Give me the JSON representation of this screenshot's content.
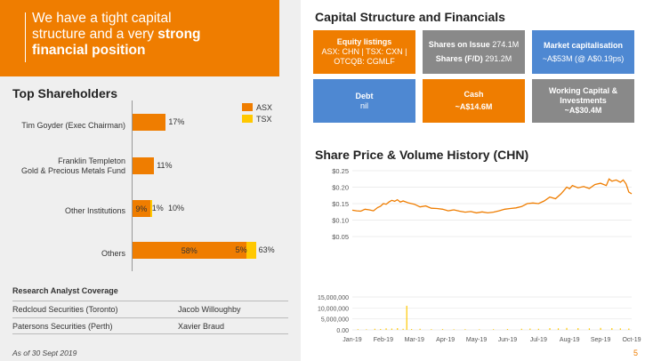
{
  "headline": {
    "line1": "We have a tight capital",
    "line2_pre": "structure and a very ",
    "line2_bold": "strong",
    "line3_bold": "financial position"
  },
  "top_shareholders": {
    "title": "Top Shareholders",
    "legend": [
      {
        "label": "ASX",
        "color": "#ef7d00"
      },
      {
        "label": "TSX",
        "color": "#ffc800"
      }
    ],
    "rows": [
      {
        "name": "Tim Goyder (Exec Chairman)",
        "asx": 17,
        "tsx": 0,
        "asx_label": "",
        "tsx_label": "",
        "total_label": "17%"
      },
      {
        "name_line1": "Franklin Templeton",
        "name_line2": "Gold & Precious Metals Fund",
        "asx": 11,
        "tsx": 0,
        "asx_label": "",
        "tsx_label": "",
        "total_label": "11%"
      },
      {
        "name": "Other Institutions",
        "asx": 9,
        "tsx": 1,
        "asx_label": "9%",
        "tsx_label": "1%",
        "total_label": "10%"
      },
      {
        "name": "Others",
        "asx": 58,
        "tsx": 5,
        "asx_label": "58%",
        "tsx_label": "5%",
        "total_label": "63%"
      }
    ]
  },
  "research": {
    "title": "Research Analyst Coverage",
    "rows": [
      {
        "firm": "Redcloud Securities (Toronto)",
        "analyst": "Jacob Willoughby"
      },
      {
        "firm": "Patersons Securities (Perth)",
        "analyst": "Xavier Braud"
      }
    ]
  },
  "footnote": "As of 30 Sept 2019",
  "capital": {
    "title": "Capital Structure and Financials",
    "equity": {
      "label": "Equity listings",
      "line1": "ASX: CHN | TSX: CXN |",
      "line2": "OTCQB: CGMLF"
    },
    "shares": {
      "issue_label": "Shares on Issue",
      "issue_value": "274.1M",
      "fd_label": "Shares (F/D)",
      "fd_value": "291.2M"
    },
    "market_cap": {
      "label": "Market capitalisation",
      "value": "~A$53M (@ A$0.19ps)"
    },
    "debt": {
      "label": "Debt",
      "value": "nil"
    },
    "cash": {
      "label": "Cash",
      "value": "~A$14.6M"
    },
    "working_capital": {
      "label": "Working Capital &",
      "label2": "Investments",
      "value": "~A$30.4M"
    }
  },
  "chart_data": {
    "type": "line",
    "title": "Share Price & Volume History (CHN)",
    "price_ylim": [
      0.05,
      0.25
    ],
    "price_ticks": [
      "$0.05",
      "$0.10",
      "$0.15",
      "$0.20",
      "$0.25"
    ],
    "volume_ylim": [
      0,
      15000000
    ],
    "volume_ticks": [
      "0.00",
      "5,000,000",
      "10,000,000",
      "15,000,000"
    ],
    "x_ticks": [
      "Jan-19",
      "Feb-19",
      "Mar-19",
      "Apr-19",
      "May-19",
      "Jun-19",
      "Jul-19",
      "Aug-19",
      "Sep-19",
      "Oct-19"
    ],
    "price_series": [
      [
        0,
        0.13
      ],
      [
        0.15,
        0.128
      ],
      [
        0.3,
        0.127
      ],
      [
        0.45,
        0.133
      ],
      [
        0.6,
        0.131
      ],
      [
        0.75,
        0.128
      ],
      [
        0.9,
        0.138
      ],
      [
        1.0,
        0.142
      ],
      [
        1.1,
        0.15
      ],
      [
        1.2,
        0.148
      ],
      [
        1.3,
        0.155
      ],
      [
        1.4,
        0.16
      ],
      [
        1.5,
        0.157
      ],
      [
        1.6,
        0.162
      ],
      [
        1.7,
        0.155
      ],
      [
        1.8,
        0.158
      ],
      [
        2.0,
        0.152
      ],
      [
        2.2,
        0.148
      ],
      [
        2.4,
        0.14
      ],
      [
        2.6,
        0.143
      ],
      [
        2.8,
        0.136
      ],
      [
        3.0,
        0.135
      ],
      [
        3.2,
        0.133
      ],
      [
        3.4,
        0.128
      ],
      [
        3.6,
        0.131
      ],
      [
        3.8,
        0.127
      ],
      [
        4.0,
        0.124
      ],
      [
        4.2,
        0.126
      ],
      [
        4.4,
        0.122
      ],
      [
        4.6,
        0.125
      ],
      [
        4.8,
        0.122
      ],
      [
        5.0,
        0.124
      ],
      [
        5.2,
        0.128
      ],
      [
        5.4,
        0.133
      ],
      [
        5.6,
        0.135
      ],
      [
        5.8,
        0.137
      ],
      [
        6.0,
        0.141
      ],
      [
        6.2,
        0.15
      ],
      [
        6.4,
        0.152
      ],
      [
        6.6,
        0.15
      ],
      [
        6.8,
        0.158
      ],
      [
        7.0,
        0.17
      ],
      [
        7.2,
        0.165
      ],
      [
        7.4,
        0.18
      ],
      [
        7.6,
        0.2
      ],
      [
        7.7,
        0.195
      ],
      [
        7.8,
        0.205
      ],
      [
        8.0,
        0.198
      ],
      [
        8.2,
        0.202
      ],
      [
        8.4,
        0.196
      ],
      [
        8.6,
        0.208
      ],
      [
        8.8,
        0.212
      ],
      [
        9.0,
        0.205
      ],
      [
        9.1,
        0.225
      ],
      [
        9.2,
        0.218
      ],
      [
        9.35,
        0.222
      ],
      [
        9.5,
        0.215
      ],
      [
        9.6,
        0.222
      ],
      [
        9.7,
        0.21
      ],
      [
        9.8,
        0.185
      ],
      [
        9.9,
        0.18
      ]
    ],
    "volume_series": [
      [
        0.2,
        300000
      ],
      [
        0.5,
        250000
      ],
      [
        0.8,
        500000
      ],
      [
        1.0,
        400000
      ],
      [
        1.2,
        700000
      ],
      [
        1.4,
        600000
      ],
      [
        1.6,
        800000
      ],
      [
        1.8,
        500000
      ],
      [
        1.93,
        11000000
      ],
      [
        2.1,
        400000
      ],
      [
        2.4,
        500000
      ],
      [
        2.8,
        300000
      ],
      [
        3.2,
        350000
      ],
      [
        3.6,
        250000
      ],
      [
        4.0,
        300000
      ],
      [
        4.5,
        250000
      ],
      [
        5.0,
        300000
      ],
      [
        5.5,
        400000
      ],
      [
        6.0,
        500000
      ],
      [
        6.3,
        600000
      ],
      [
        6.6,
        500000
      ],
      [
        7.0,
        800000
      ],
      [
        7.3,
        700000
      ],
      [
        7.6,
        900000
      ],
      [
        8.0,
        800000
      ],
      [
        8.4,
        700000
      ],
      [
        8.8,
        900000
      ],
      [
        9.2,
        800000
      ],
      [
        9.5,
        700000
      ],
      [
        9.8,
        600000
      ]
    ]
  },
  "page_number": "5"
}
